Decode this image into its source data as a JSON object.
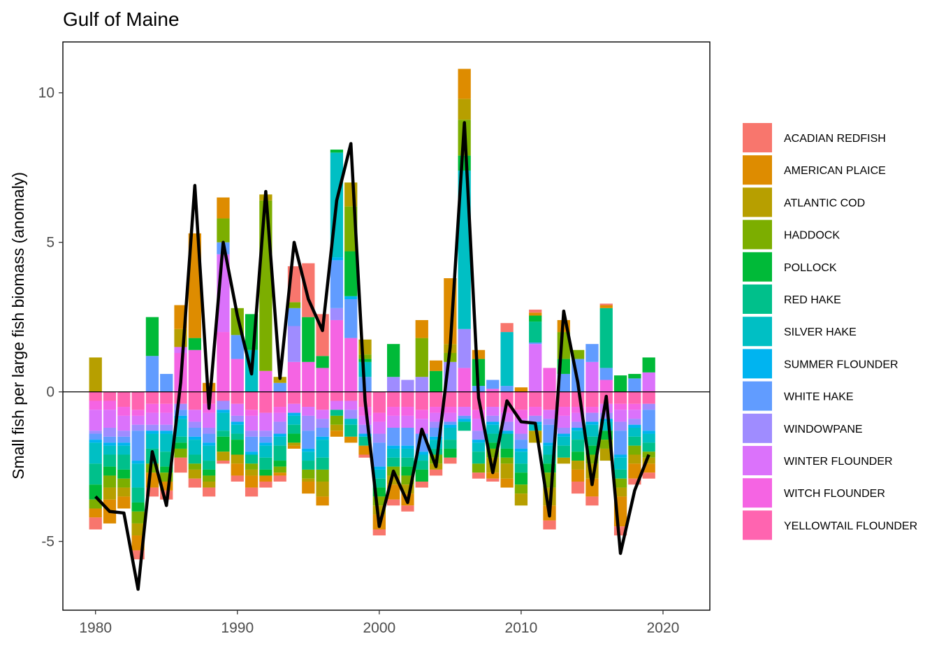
{
  "chart_data": {
    "type": "bar",
    "stacked": true,
    "title": "Gulf of Maine",
    "xlabel": "",
    "ylabel": "Small fish per large fish biomass (anomaly)",
    "xlim": [
      1977.7,
      2023.3
    ],
    "ylim": [
      -7.3,
      11.7
    ],
    "x_ticks": [
      1980,
      1990,
      2000,
      2010,
      2020
    ],
    "y_ticks": [
      -5,
      0,
      5,
      10
    ],
    "y_tick_labels": [
      "-5",
      "0",
      "5",
      "10"
    ],
    "grid": false,
    "legend_position": "right",
    "years": [
      1980,
      1981,
      1982,
      1983,
      1984,
      1985,
      1986,
      1987,
      1988,
      1989,
      1990,
      1991,
      1992,
      1993,
      1994,
      1995,
      1996,
      1997,
      1998,
      1999,
      2000,
      2001,
      2002,
      2003,
      2004,
      2005,
      2006,
      2007,
      2008,
      2009,
      2010,
      2011,
      2012,
      2013,
      2014,
      2015,
      2016,
      2017,
      2018,
      2019
    ],
    "series": [
      {
        "name": "ACADIAN REDFISH",
        "color": "#F8766D",
        "values": [
          -0.4,
          0,
          0,
          -0.3,
          -0.3,
          -0.3,
          -0.5,
          -0.3,
          -0.3,
          -0.1,
          -0.2,
          -0.3,
          -0.2,
          -0.2,
          1.2,
          1.8,
          1.4,
          0,
          0,
          -0.1,
          -0.2,
          -0.2,
          -0.2,
          -0.2,
          -0.2,
          -0.2,
          0,
          -0.2,
          -0.1,
          0.3,
          0,
          0.1,
          -0.3,
          0,
          -0.4,
          -0.3,
          0.05,
          -0.3,
          -0.2,
          -0.2
        ]
      },
      {
        "name": "AMERICAN PLAICE",
        "color": "#DE8C00",
        "values": [
          -0.3,
          -0.8,
          -0.4,
          -0.5,
          -0.5,
          -0.3,
          0.8,
          3.5,
          0.3,
          0.7,
          -0.4,
          -0.4,
          -0.2,
          -0.1,
          -0.1,
          -0.4,
          -0.3,
          -0.2,
          -0.2,
          -0.3,
          -0.5,
          -0.5,
          -0.4,
          0.6,
          0.35,
          2.2,
          1.0,
          0.3,
          -0.2,
          -0.3,
          0.15,
          0.1,
          -0.5,
          0.4,
          -0.4,
          -0.6,
          0.1,
          -1.0,
          -0.5,
          -0.3
        ]
      },
      {
        "name": "ATLANTIC COD",
        "color": "#B79F00",
        "values": [
          1.15,
          -0.4,
          -0.3,
          -0.4,
          0,
          0,
          0.6,
          -0.3,
          -0.2,
          -0.3,
          -0.3,
          -0.2,
          0.2,
          0.2,
          -0.1,
          -0.1,
          -0.5,
          -0.2,
          0.8,
          0.5,
          -0.3,
          -0.3,
          -0.3,
          0,
          -0.2,
          0.3,
          0.7,
          0,
          -0.5,
          -0.5,
          -0.4,
          -0.4,
          -0.6,
          -0.2,
          -0.3,
          -0.5,
          -0.4,
          -0.3,
          -0.3,
          -0.2
        ]
      },
      {
        "name": "HADDOCK",
        "color": "#7CAE00",
        "values": [
          -0.3,
          -0.4,
          -0.3,
          -0.4,
          -0.3,
          -0.3,
          -0.3,
          -0.2,
          -0.2,
          0.8,
          0.9,
          -0.2,
          5.7,
          -0.2,
          0.2,
          -0.3,
          -0.4,
          -0.3,
          1.5,
          0.15,
          -0.3,
          -0.3,
          -0.3,
          1.3,
          -0.3,
          0.3,
          1.2,
          -0.3,
          -0.3,
          -0.2,
          -0.3,
          0,
          -0.5,
          0.9,
          0.3,
          -0.3,
          -0.3,
          -0.3,
          -0.3,
          -0.2
        ]
      },
      {
        "name": "POLLOCK",
        "color": "#00BA38",
        "values": [
          -0.5,
          -0.3,
          -0.3,
          -0.3,
          1.3,
          -0.2,
          -0.2,
          0.4,
          -0.2,
          -0.5,
          -0.5,
          1.2,
          -0.2,
          -0.2,
          -0.3,
          1.5,
          0.4,
          0.1,
          1.5,
          0.1,
          -0.3,
          1.1,
          -0.3,
          -0.4,
          0.7,
          -0.3,
          0.5,
          0.9,
          -0.2,
          -0.3,
          -0.4,
          0.2,
          -0.3,
          0.5,
          -0.3,
          -0.3,
          -0.3,
          0.55,
          0.15,
          0.5
        ]
      },
      {
        "name": "RED HAKE",
        "color": "#00C08B",
        "values": [
          -0.7,
          -0.4,
          -0.5,
          -0.5,
          -0.5,
          -0.5,
          -0.2,
          -0.3,
          -0.3,
          -0.2,
          -0.2,
          -0.3,
          -0.4,
          -0.5,
          -0.3,
          -0.3,
          -0.4,
          -0.2,
          -0.4,
          -0.3,
          -0.3,
          -0.3,
          -0.3,
          -0.3,
          -0.2,
          -0.3,
          -0.3,
          -0.4,
          -0.3,
          -0.5,
          -0.3,
          0.7,
          -0.3,
          -0.4,
          -0.4,
          -0.3,
          2.0,
          -0.3,
          -0.3,
          -0.3
        ]
      },
      {
        "name": "SILVER HAKE",
        "color": "#00BFC4",
        "values": [
          -0.7,
          -0.3,
          -0.3,
          -0.8,
          -0.5,
          -0.6,
          -0.6,
          -0.5,
          -0.5,
          -0.6,
          -0.3,
          1.4,
          -0.4,
          -0.3,
          -0.3,
          -0.3,
          -0.6,
          3.5,
          -0.2,
          0.5,
          -0.3,
          -0.3,
          -0.3,
          -0.2,
          -0.3,
          -0.4,
          5.3,
          -0.3,
          -0.3,
          1.8,
          -0.4,
          -0.2,
          -0.3,
          -0.3,
          -0.3,
          -0.4,
          -0.3,
          -0.4,
          -0.3,
          -0.3
        ]
      },
      {
        "name": "SUMMER FLOUNDER",
        "color": "#00B4F0",
        "values": [
          -0.1,
          -0.1,
          -0.1,
          -0.1,
          -0.1,
          -0.1,
          -0.1,
          -0.1,
          -0.1,
          -0.1,
          -0.1,
          -0.1,
          -0.1,
          -0.1,
          -0.1,
          -0.1,
          -0.1,
          0.1,
          0.1,
          -0.1,
          -0.1,
          -0.1,
          -0.1,
          -0.1,
          -0.1,
          -0.1,
          -0.1,
          -0.1,
          -0.1,
          -0.1,
          -0.1,
          -0.1,
          -0.1,
          -0.1,
          -0.1,
          -0.1,
          -0.1,
          -0.1,
          -0.1,
          -0.1
        ]
      },
      {
        "name": "WHITE HAKE",
        "color": "#619CFF",
        "values": [
          -0.2,
          -0.2,
          -0.2,
          -1.0,
          1.2,
          0.6,
          -0.2,
          -0.3,
          -0.3,
          0.4,
          0.8,
          -0.5,
          -0.2,
          0.3,
          0.6,
          -0.6,
          -0.3,
          1.6,
          1.3,
          0.5,
          -0.8,
          -0.6,
          -0.6,
          -0.6,
          -0.3,
          -0.1,
          -0.1,
          0.2,
          0.3,
          0.2,
          -0.3,
          0.05,
          -0.6,
          0.6,
          1.1,
          0.6,
          0.4,
          -0.8,
          0.45,
          -0.7
        ]
      },
      {
        "name": "WINDOWPANE",
        "color": "#9F8CFF",
        "values": [
          -0.1,
          -0.3,
          -0.2,
          -0.2,
          -0.2,
          -0.2,
          -0.2,
          -0.2,
          -0.2,
          -0.3,
          -0.2,
          -0.2,
          -0.2,
          -0.4,
          1.2,
          -0.5,
          -0.3,
          0.4,
          -0.3,
          -0.3,
          -0.3,
          0.5,
          0.4,
          0.5,
          -0.2,
          1.0,
          1.3,
          -0.3,
          -0.2,
          -0.3,
          -0.2,
          -0.2,
          -0.2,
          -0.2,
          -0.2,
          -0.3,
          -0.2,
          -0.3,
          -0.2,
          -0.2
        ]
      },
      {
        "name": "WINTER FLOUNDER",
        "color": "#DB72FB",
        "values": [
          -0.7,
          -0.6,
          -0.5,
          -0.3,
          -0.4,
          -0.4,
          0.2,
          -0.4,
          -0.5,
          2.6,
          -0.4,
          -0.5,
          -0.6,
          -0.3,
          -0.3,
          -0.3,
          -0.3,
          -0.3,
          -0.3,
          -0.3,
          -0.4,
          -0.4,
          -0.4,
          -0.5,
          -0.3,
          -0.3,
          -0.3,
          -0.4,
          -0.3,
          -0.3,
          -0.5,
          1.6,
          -0.3,
          -0.4,
          -0.3,
          1.0,
          -0.3,
          -0.4,
          -0.3,
          0.6
        ]
      },
      {
        "name": "WITCH FLOUNDER",
        "color": "#F564E3",
        "values": [
          -0.3,
          -0.3,
          -0.3,
          -0.2,
          -0.3,
          -0.3,
          1.3,
          1.4,
          -0.3,
          2.0,
          1.1,
          -0.2,
          0.7,
          -0.2,
          1.0,
          1.0,
          0.8,
          2.4,
          1.8,
          -0.3,
          -0.3,
          -0.3,
          -0.3,
          -0.3,
          -0.2,
          -0.2,
          0.8,
          -0.3,
          0.1,
          -0.2,
          -0.3,
          -0.3,
          0.8,
          -0.3,
          -0.2,
          -0.2,
          0.4,
          -0.2,
          -0.2,
          0.05
        ]
      },
      {
        "name": "YELLOWTAIL FLOUNDER",
        "color": "#FF64B0",
        "values": [
          -0.3,
          -0.3,
          -0.5,
          -0.6,
          -0.4,
          -0.4,
          -0.4,
          -0.6,
          -0.4,
          -0.3,
          -0.4,
          -0.6,
          -0.7,
          -0.5,
          -0.4,
          -0.5,
          -0.6,
          -0.3,
          -0.3,
          -0.5,
          -0.7,
          -0.5,
          -0.5,
          -0.6,
          -0.5,
          -0.5,
          -0.5,
          -0.6,
          -0.5,
          -0.5,
          -0.6,
          -0.5,
          -0.6,
          -0.5,
          -0.5,
          -0.5,
          -0.4,
          -0.4,
          -0.4,
          -0.4
        ]
      }
    ],
    "total_line": {
      "color": "#000000",
      "values": [
        -3.5,
        -4.0,
        -4.05,
        -6.6,
        -2.0,
        -3.8,
        0.3,
        6.9,
        -0.55,
        5.0,
        2.55,
        0.6,
        6.7,
        0.45,
        5.0,
        3.1,
        2.05,
        6.4,
        8.3,
        -0.3,
        -4.5,
        -2.65,
        -3.7,
        -1.25,
        -2.5,
        1.5,
        9.0,
        -0.2,
        -2.7,
        -0.3,
        -1.0,
        -1.05,
        -4.15,
        2.7,
        0.3,
        -3.1,
        -0.15,
        -5.4,
        -3.3,
        -2.1
      ]
    }
  }
}
